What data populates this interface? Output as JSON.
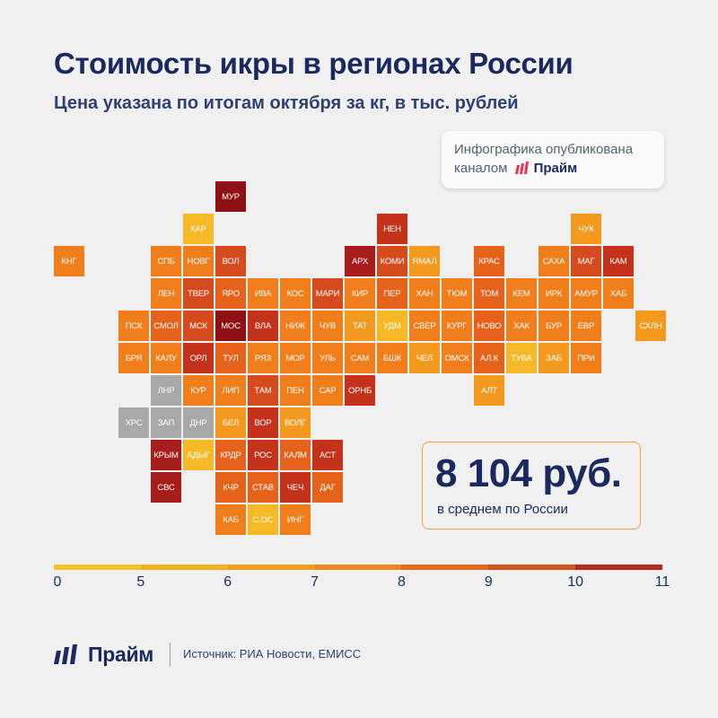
{
  "title": "Стоимость икры в регионах России",
  "subtitle": "Цена указана по итогам октября за кг, в тыс. рублей",
  "note": {
    "line1": "Инфографика опубликована",
    "line2": "каналом",
    "brand": "Прайм"
  },
  "average": {
    "value": "8 104 руб.",
    "label": "в среднем по России"
  },
  "colors": {
    "nodata": "#a8a8a8",
    "bins": [
      "#f5b826",
      "#f39a1e",
      "#ef7e1b",
      "#e4621a",
      "#d64b1d",
      "#c4321c",
      "#a71d1b",
      "#8f1014"
    ],
    "title": "#1b2a5e"
  },
  "scale": {
    "ticks": [
      "0",
      "5",
      "6",
      "7",
      "8",
      "9",
      "10",
      "11"
    ],
    "colors": [
      "#f5c22e",
      "#f5b321",
      "#f19f1c",
      "#ee851a",
      "#e4691a",
      "#d6501e",
      "#b8281a",
      "#8f1014"
    ]
  },
  "footer": {
    "brand": "Прайм",
    "source": "Источник: РИА Новости, ЕМИСС"
  },
  "map": [
    {
      "label": "МУР",
      "col": 5,
      "row": 0,
      "bin": 7
    },
    {
      "label": "КАР",
      "col": 4,
      "row": 1,
      "bin": 0
    },
    {
      "label": "НЕН",
      "col": 10,
      "row": 1,
      "bin": 5
    },
    {
      "label": "ЧУК",
      "col": 16,
      "row": 1,
      "bin": 1
    },
    {
      "label": "КНГ",
      "col": 0,
      "row": 2,
      "bin": 2
    },
    {
      "label": "СПБ",
      "col": 3,
      "row": 2,
      "bin": 2
    },
    {
      "label": "НОВГ",
      "col": 4,
      "row": 2,
      "bin": 2
    },
    {
      "label": "ВОЛ",
      "col": 5,
      "row": 2,
      "bin": 4
    },
    {
      "label": "АРХ",
      "col": 9,
      "row": 2,
      "bin": 6
    },
    {
      "label": "КОМИ",
      "col": 10,
      "row": 2,
      "bin": 4
    },
    {
      "label": "ЯМАЛ",
      "col": 11,
      "row": 2,
      "bin": 1
    },
    {
      "label": "КРАС",
      "col": 13,
      "row": 2,
      "bin": 3
    },
    {
      "label": "САХА",
      "col": 15,
      "row": 2,
      "bin": 2
    },
    {
      "label": "МАГ",
      "col": 16,
      "row": 2,
      "bin": 4
    },
    {
      "label": "КАМ",
      "col": 17,
      "row": 2,
      "bin": 5
    },
    {
      "label": "ЛЕН",
      "col": 3,
      "row": 3,
      "bin": 2
    },
    {
      "label": "ТВЕР",
      "col": 4,
      "row": 3,
      "bin": 4
    },
    {
      "label": "ЯРО",
      "col": 5,
      "row": 3,
      "bin": 3
    },
    {
      "label": "ИВА",
      "col": 6,
      "row": 3,
      "bin": 2
    },
    {
      "label": "КОС",
      "col": 7,
      "row": 3,
      "bin": 2
    },
    {
      "label": "МАРИ",
      "col": 8,
      "row": 3,
      "bin": 4
    },
    {
      "label": "КИР",
      "col": 9,
      "row": 3,
      "bin": 2
    },
    {
      "label": "ПЕР",
      "col": 10,
      "row": 3,
      "bin": 3
    },
    {
      "label": "ХАН",
      "col": 11,
      "row": 3,
      "bin": 2
    },
    {
      "label": "ТЮМ",
      "col": 12,
      "row": 3,
      "bin": 2
    },
    {
      "label": "ТОМ",
      "col": 13,
      "row": 3,
      "bin": 3
    },
    {
      "label": "КЕМ",
      "col": 14,
      "row": 3,
      "bin": 2
    },
    {
      "label": "ИРК",
      "col": 15,
      "row": 3,
      "bin": 2
    },
    {
      "label": "АМУР",
      "col": 16,
      "row": 3,
      "bin": 2
    },
    {
      "label": "ХАБ",
      "col": 17,
      "row": 3,
      "bin": 2
    },
    {
      "label": "ПСК",
      "col": 2,
      "row": 4,
      "bin": 2
    },
    {
      "label": "СМОЛ",
      "col": 3,
      "row": 4,
      "bin": 3
    },
    {
      "label": "МСК",
      "col": 4,
      "row": 4,
      "bin": 4
    },
    {
      "label": "МОС",
      "col": 5,
      "row": 4,
      "bin": 7
    },
    {
      "label": "ВЛА",
      "col": 6,
      "row": 4,
      "bin": 5
    },
    {
      "label": "НИЖ",
      "col": 7,
      "row": 4,
      "bin": 2
    },
    {
      "label": "ЧУВ",
      "col": 8,
      "row": 4,
      "bin": 2
    },
    {
      "label": "ТАТ",
      "col": 9,
      "row": 4,
      "bin": 1
    },
    {
      "label": "УДМ",
      "col": 10,
      "row": 4,
      "bin": 0
    },
    {
      "label": "СВЕР",
      "col": 11,
      "row": 4,
      "bin": 2
    },
    {
      "label": "КУРГ",
      "col": 12,
      "row": 4,
      "bin": 2
    },
    {
      "label": "НОВО",
      "col": 13,
      "row": 4,
      "bin": 3
    },
    {
      "label": "ХАК",
      "col": 14,
      "row": 4,
      "bin": 2
    },
    {
      "label": "БУР",
      "col": 15,
      "row": 4,
      "bin": 2
    },
    {
      "label": "ЕВР",
      "col": 16,
      "row": 4,
      "bin": 2
    },
    {
      "label": "СХЛН",
      "col": 18,
      "row": 4,
      "bin": 1
    },
    {
      "label": "БРЯ",
      "col": 2,
      "row": 5,
      "bin": 2
    },
    {
      "label": "КАЛУ",
      "col": 3,
      "row": 5,
      "bin": 2
    },
    {
      "label": "ОРЛ",
      "col": 4,
      "row": 5,
      "bin": 5
    },
    {
      "label": "ТУЛ",
      "col": 5,
      "row": 5,
      "bin": 3
    },
    {
      "label": "РЯЗ",
      "col": 6,
      "row": 5,
      "bin": 2
    },
    {
      "label": "МОР",
      "col": 7,
      "row": 5,
      "bin": 2
    },
    {
      "label": "УЛЬ",
      "col": 8,
      "row": 5,
      "bin": 2
    },
    {
      "label": "САМ",
      "col": 9,
      "row": 5,
      "bin": 2
    },
    {
      "label": "БШК",
      "col": 10,
      "row": 5,
      "bin": 2
    },
    {
      "label": "ЧЕЛ",
      "col": 11,
      "row": 5,
      "bin": 1
    },
    {
      "label": "ОМСК",
      "col": 12,
      "row": 5,
      "bin": 2
    },
    {
      "label": "АЛ.К",
      "col": 13,
      "row": 5,
      "bin": 3
    },
    {
      "label": "ТУВА",
      "col": 14,
      "row": 5,
      "bin": 0
    },
    {
      "label": "ЗАБ",
      "col": 15,
      "row": 5,
      "bin": 1
    },
    {
      "label": "ПРИ",
      "col": 16,
      "row": 5,
      "bin": 2
    },
    {
      "label": "ЛНР",
      "col": 3,
      "row": 6,
      "bin": -1
    },
    {
      "label": "КУР",
      "col": 4,
      "row": 6,
      "bin": 2
    },
    {
      "label": "ЛИП",
      "col": 5,
      "row": 6,
      "bin": 2
    },
    {
      "label": "ТАМ",
      "col": 6,
      "row": 6,
      "bin": 4
    },
    {
      "label": "ПЕН",
      "col": 7,
      "row": 6,
      "bin": 2
    },
    {
      "label": "САР",
      "col": 8,
      "row": 6,
      "bin": 2
    },
    {
      "label": "ОРНБ",
      "col": 9,
      "row": 6,
      "bin": 5
    },
    {
      "label": "АЛТ",
      "col": 13,
      "row": 6,
      "bin": 1
    },
    {
      "label": "ХРС",
      "col": 2,
      "row": 7,
      "bin": -1
    },
    {
      "label": "ЗАП",
      "col": 3,
      "row": 7,
      "bin": -1
    },
    {
      "label": "ДНР",
      "col": 4,
      "row": 7,
      "bin": -1
    },
    {
      "label": "БЕЛ",
      "col": 5,
      "row": 7,
      "bin": 1
    },
    {
      "label": "ВОР",
      "col": 6,
      "row": 7,
      "bin": 5
    },
    {
      "label": "ВОЛГ",
      "col": 7,
      "row": 7,
      "bin": 1
    },
    {
      "label": "КРЫМ",
      "col": 3,
      "row": 8,
      "bin": 6
    },
    {
      "label": "АДЫГ",
      "col": 4,
      "row": 8,
      "bin": 0
    },
    {
      "label": "КРДР",
      "col": 5,
      "row": 8,
      "bin": 3
    },
    {
      "label": "РОС",
      "col": 6,
      "row": 8,
      "bin": 5
    },
    {
      "label": "КАЛМ",
      "col": 7,
      "row": 8,
      "bin": 3
    },
    {
      "label": "АСТ",
      "col": 8,
      "row": 8,
      "bin": 5
    },
    {
      "label": "СВС",
      "col": 3,
      "row": 9,
      "bin": 6
    },
    {
      "label": "КЧР",
      "col": 5,
      "row": 9,
      "bin": 3
    },
    {
      "label": "СТАВ",
      "col": 6,
      "row": 9,
      "bin": 3
    },
    {
      "label": "ЧЕЧ",
      "col": 7,
      "row": 9,
      "bin": 5
    },
    {
      "label": "ДАГ",
      "col": 8,
      "row": 9,
      "bin": 3
    },
    {
      "label": "КАБ",
      "col": 5,
      "row": 10,
      "bin": 2
    },
    {
      "label": "С.ОС",
      "col": 6,
      "row": 10,
      "bin": 0
    },
    {
      "label": "ИНГ",
      "col": 7,
      "row": 10,
      "bin": 2
    }
  ]
}
